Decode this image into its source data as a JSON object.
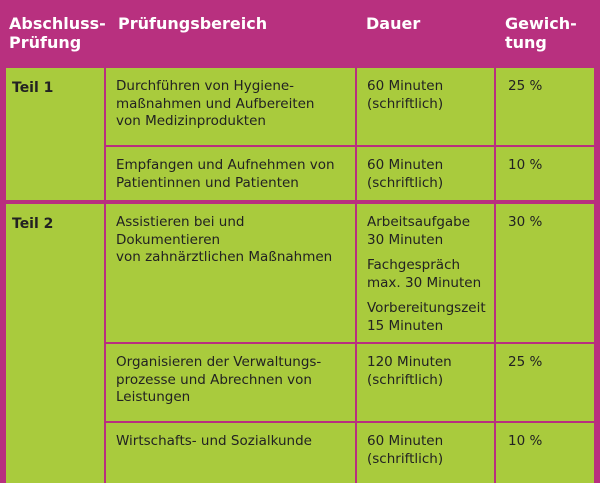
{
  "header": {
    "col1": [
      "Abschluss-",
      "Prüfung"
    ],
    "col2": "Prüfungsbereich",
    "col3": "Dauer",
    "col4": [
      "Gewich-",
      "tung"
    ]
  },
  "parts": [
    {
      "label": "Teil 1",
      "rows": [
        {
          "area": [
            "Durchführen von Hygiene-",
            "maßnahmen und Aufbereiten",
            "von Medizinprodukten"
          ],
          "duration": [
            [
              "60 Minuten",
              "(schriftlich)"
            ]
          ],
          "weight": "25 %"
        },
        {
          "area": [
            "Empfangen und Aufnehmen von",
            "Patientinnen und Patienten"
          ],
          "duration": [
            [
              "60 Minuten",
              "(schriftlich)"
            ]
          ],
          "weight": "10 %"
        }
      ]
    },
    {
      "label": "Teil 2",
      "rows": [
        {
          "area": [
            "Assistieren bei und Dokumentieren",
            "von zahnärztlichen Maßnahmen"
          ],
          "duration": [
            [
              "Arbeitsaufgabe",
              "30 Minuten"
            ],
            [
              "Fachgespräch",
              "max. 30 Minuten"
            ],
            [
              "Vorbereitungszeit",
              "15 Minuten"
            ]
          ],
          "weight": "30 %"
        },
        {
          "area": [
            "Organisieren der Verwaltungs-",
            "prozesse und Abrechnen von",
            "Leistungen"
          ],
          "duration": [
            [
              "120 Minuten",
              "(schriftlich)"
            ]
          ],
          "weight": "25 %"
        },
        {
          "area": [
            "Wirtschafts- und Sozialkunde"
          ],
          "duration": [
            [
              "60 Minuten",
              "(schriftlich)"
            ]
          ],
          "weight": "10 %"
        }
      ]
    }
  ]
}
